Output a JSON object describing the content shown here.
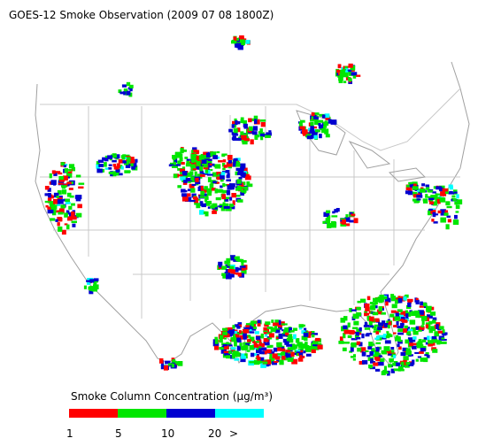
{
  "title": "GOES-12 Smoke Observation (2009 07 08  1800Z)",
  "legend": {
    "title": "Smoke Column Concentration (μg/m³)",
    "colors": [
      "#ff0000",
      "#00e600",
      "#0000d0",
      "#00ffff"
    ],
    "labels": [
      "1",
      "5",
      "10",
      "20",
      ">"
    ]
  }
}
